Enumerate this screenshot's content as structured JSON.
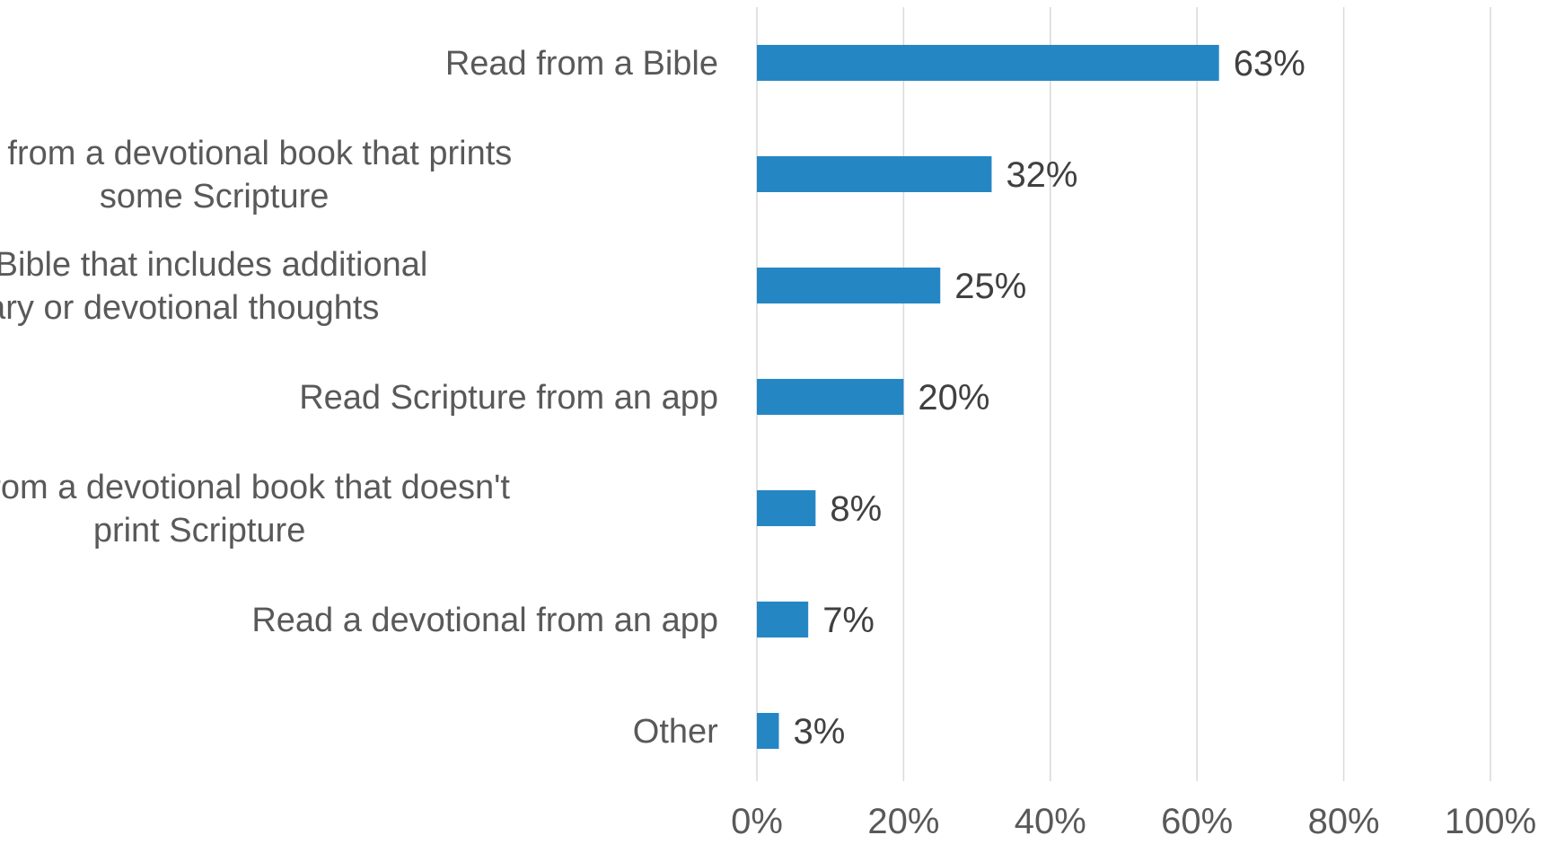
{
  "chart_data": {
    "type": "bar",
    "orientation": "horizontal",
    "categories": [
      "Read from a Bible",
      "Read from a devotional book that prints some Scripture",
      "Read from a Bible that includes additional commentary or devotional thoughts",
      "Read Scripture from an app",
      "Read from a devotional book that doesn't print Scripture",
      "Read a devotional from an app",
      "Other"
    ],
    "category_lines": [
      [
        "Read from a Bible"
      ],
      [
        "Read from a devotional book that prints",
        "some Scripture"
      ],
      [
        "Read from a Bible that includes additional",
        "commentary or devotional thoughts"
      ],
      [
        "Read Scripture from an app"
      ],
      [
        "Read from a devotional book that doesn't",
        "print Scripture"
      ],
      [
        "Read a devotional from an app"
      ],
      [
        "Other"
      ]
    ],
    "values": [
      63,
      32,
      25,
      20,
      8,
      7,
      3
    ],
    "data_labels": [
      "63%",
      "32%",
      "25%",
      "20%",
      "8%",
      "7%",
      "3%"
    ],
    "xlim": [
      0,
      100
    ],
    "xticks": [
      0,
      20,
      40,
      60,
      80,
      100
    ],
    "xtick_labels": [
      "0%",
      "20%",
      "40%",
      "60%",
      "80%",
      "100%"
    ],
    "grid": true,
    "legend": "none",
    "bar_color": "#2586c4",
    "title": "",
    "xlabel": "",
    "ylabel": ""
  }
}
